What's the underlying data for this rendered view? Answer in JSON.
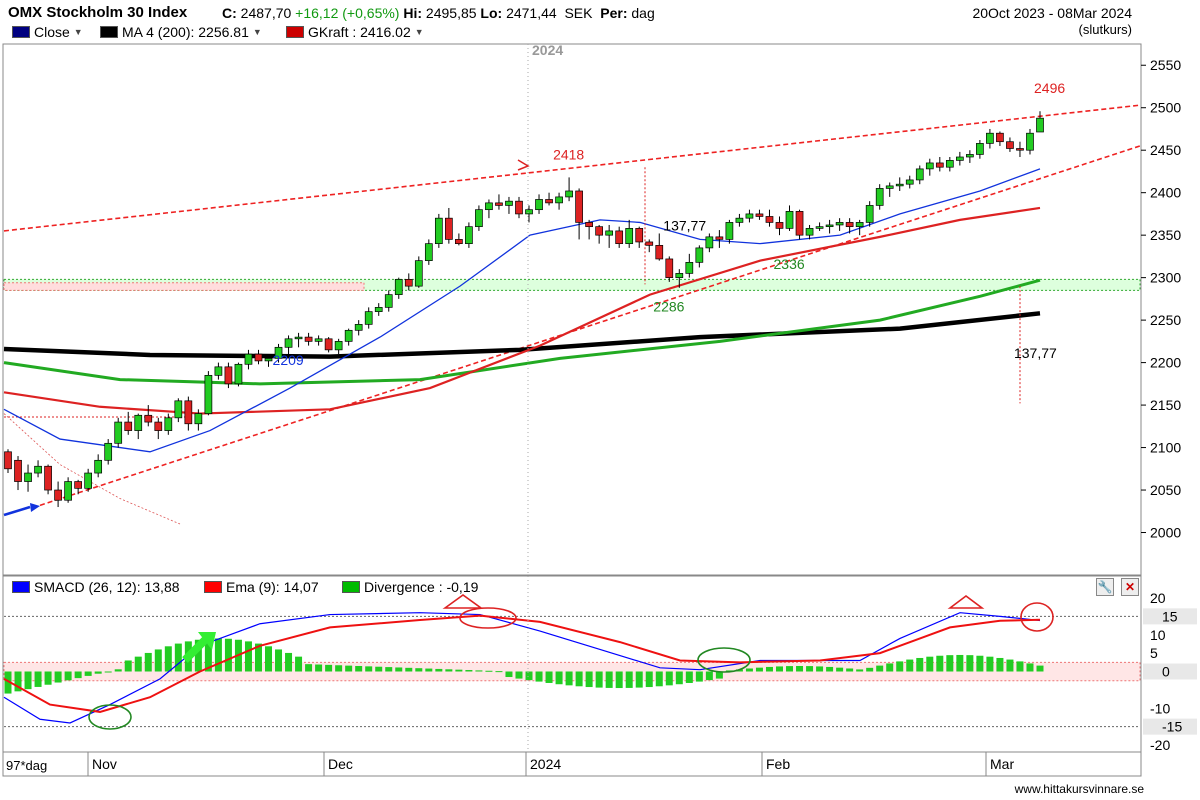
{
  "header": {
    "index_name": "OMX Stockholm 30 Index",
    "close_label": "C:",
    "close_value": "2487,70",
    "change": "+16,12 (+0,65%)",
    "hi_label": "Hi:",
    "hi_value": "2495,85",
    "lo_label": "Lo:",
    "lo_value": "2471,44",
    "currency": "SEK",
    "period_label": "Per:",
    "period_value": "dag",
    "date_range": "20Oct 2023 - 08Mar 2024",
    "close_type": "(slutkurs)"
  },
  "legend_main": [
    {
      "label": "Close",
      "color": "#000080"
    },
    {
      "label": "MA 4 (200): 2256.81",
      "color": "#000000"
    },
    {
      "label": "GKraft : 2416.02",
      "color": "#cc0000"
    }
  ],
  "legend_macd": [
    {
      "label": "SMACD (26, 12): 13,88",
      "color": "#0000ff"
    },
    {
      "label": "Ema (9): 14,07",
      "color": "#ff0000"
    },
    {
      "label": "Divergence : -0,19",
      "color": "#00bb00"
    }
  ],
  "colors": {
    "up": "#22cc22",
    "down": "#dd2222",
    "ma200": "#000000",
    "green_ma": "#22aa22",
    "red_ma": "#dd2222",
    "blue_ma": "#1133dd",
    "trend": "#ee2222"
  },
  "watermark": "www.hittakursvinnare.se",
  "period_footer": "97*dag",
  "year_label": "2024",
  "chart_data": {
    "type": "candlestick",
    "y_axis": {
      "min": 1950,
      "max": 2575,
      "ticks": [
        2000,
        2050,
        2100,
        2150,
        2200,
        2250,
        2300,
        2350,
        2400,
        2450,
        2500,
        2550
      ]
    },
    "x_labels": [
      "Nov",
      "Dec",
      "2024",
      "Feb",
      "Mar"
    ],
    "candles": [
      [
        2095,
        2098,
        2070,
        2075
      ],
      [
        2085,
        2090,
        2050,
        2060
      ],
      [
        2060,
        2080,
        2048,
        2070
      ],
      [
        2070,
        2085,
        2065,
        2078
      ],
      [
        2078,
        2080,
        2045,
        2050
      ],
      [
        2050,
        2060,
        2030,
        2038
      ],
      [
        2038,
        2065,
        2035,
        2060
      ],
      [
        2060,
        2062,
        2045,
        2052
      ],
      [
        2052,
        2075,
        2048,
        2070
      ],
      [
        2070,
        2092,
        2065,
        2085
      ],
      [
        2085,
        2110,
        2080,
        2105
      ],
      [
        2105,
        2135,
        2100,
        2130
      ],
      [
        2130,
        2142,
        2115,
        2120
      ],
      [
        2120,
        2140,
        2110,
        2138
      ],
      [
        2138,
        2150,
        2125,
        2130
      ],
      [
        2130,
        2135,
        2110,
        2120
      ],
      [
        2120,
        2140,
        2115,
        2135
      ],
      [
        2135,
        2158,
        2130,
        2155
      ],
      [
        2155,
        2160,
        2120,
        2128
      ],
      [
        2128,
        2145,
        2120,
        2140
      ],
      [
        2140,
        2190,
        2138,
        2185
      ],
      [
        2185,
        2200,
        2180,
        2195
      ],
      [
        2195,
        2200,
        2170,
        2175
      ],
      [
        2175,
        2200,
        2172,
        2198
      ],
      [
        2198,
        2215,
        2192,
        2210
      ],
      [
        2210,
        2215,
        2198,
        2202
      ],
      [
        2202,
        2208,
        2195,
        2205
      ],
      [
        2205,
        2222,
        2200,
        2218
      ],
      [
        2218,
        2232,
        2210,
        2228
      ],
      [
        2228,
        2235,
        2218,
        2230
      ],
      [
        2230,
        2235,
        2220,
        2225
      ],
      [
        2225,
        2232,
        2220,
        2228
      ],
      [
        2228,
        2230,
        2212,
        2215
      ],
      [
        2215,
        2228,
        2210,
        2225
      ],
      [
        2225,
        2240,
        2220,
        2238
      ],
      [
        2238,
        2250,
        2232,
        2245
      ],
      [
        2245,
        2265,
        2240,
        2260
      ],
      [
        2260,
        2270,
        2255,
        2265
      ],
      [
        2265,
        2285,
        2260,
        2280
      ],
      [
        2280,
        2300,
        2275,
        2298
      ],
      [
        2298,
        2305,
        2285,
        2290
      ],
      [
        2290,
        2325,
        2288,
        2320
      ],
      [
        2320,
        2345,
        2315,
        2340
      ],
      [
        2340,
        2375,
        2335,
        2370
      ],
      [
        2370,
        2382,
        2340,
        2345
      ],
      [
        2345,
        2352,
        2338,
        2340
      ],
      [
        2340,
        2365,
        2335,
        2360
      ],
      [
        2360,
        2385,
        2355,
        2380
      ],
      [
        2380,
        2392,
        2370,
        2388
      ],
      [
        2388,
        2398,
        2380,
        2385
      ],
      [
        2385,
        2395,
        2375,
        2390
      ],
      [
        2390,
        2395,
        2370,
        2375
      ],
      [
        2375,
        2385,
        2365,
        2380
      ],
      [
        2380,
        2398,
        2375,
        2392
      ],
      [
        2392,
        2400,
        2385,
        2388
      ],
      [
        2388,
        2400,
        2380,
        2395
      ],
      [
        2395,
        2418,
        2390,
        2402
      ],
      [
        2402,
        2405,
        2345,
        2365
      ],
      [
        2365,
        2368,
        2345,
        2360
      ],
      [
        2360,
        2362,
        2340,
        2350
      ],
      [
        2350,
        2362,
        2335,
        2355
      ],
      [
        2355,
        2360,
        2335,
        2340
      ],
      [
        2340,
        2368,
        2335,
        2358
      ],
      [
        2358,
        2360,
        2335,
        2342
      ],
      [
        2342,
        2345,
        2330,
        2338
      ],
      [
        2338,
        2352,
        2320,
        2322
      ],
      [
        2322,
        2325,
        2295,
        2300
      ],
      [
        2300,
        2310,
        2288,
        2305
      ],
      [
        2305,
        2328,
        2300,
        2318
      ],
      [
        2318,
        2338,
        2312,
        2335
      ],
      [
        2335,
        2352,
        2330,
        2348
      ],
      [
        2348,
        2356,
        2335,
        2345
      ],
      [
        2345,
        2368,
        2340,
        2365
      ],
      [
        2365,
        2375,
        2360,
        2370
      ],
      [
        2370,
        2380,
        2365,
        2375
      ],
      [
        2375,
        2380,
        2368,
        2372
      ],
      [
        2372,
        2380,
        2360,
        2365
      ],
      [
        2365,
        2372,
        2350,
        2358
      ],
      [
        2358,
        2385,
        2355,
        2378
      ],
      [
        2378,
        2380,
        2345,
        2350
      ],
      [
        2350,
        2362,
        2345,
        2358
      ],
      [
        2358,
        2365,
        2355,
        2360
      ],
      [
        2360,
        2368,
        2352,
        2362
      ],
      [
        2362,
        2370,
        2355,
        2365
      ],
      [
        2365,
        2370,
        2352,
        2360
      ],
      [
        2360,
        2368,
        2350,
        2365
      ],
      [
        2365,
        2390,
        2360,
        2385
      ],
      [
        2385,
        2410,
        2380,
        2405
      ],
      [
        2405,
        2412,
        2395,
        2408
      ],
      [
        2408,
        2418,
        2402,
        2410
      ],
      [
        2410,
        2420,
        2405,
        2415
      ],
      [
        2415,
        2432,
        2410,
        2428
      ],
      [
        2428,
        2440,
        2420,
        2435
      ],
      [
        2435,
        2442,
        2425,
        2430
      ],
      [
        2430,
        2442,
        2425,
        2438
      ],
      [
        2438,
        2448,
        2432,
        2442
      ],
      [
        2442,
        2450,
        2435,
        2445
      ],
      [
        2445,
        2462,
        2440,
        2458
      ],
      [
        2458,
        2475,
        2452,
        2470
      ],
      [
        2470,
        2472,
        2455,
        2460
      ],
      [
        2460,
        2465,
        2448,
        2452
      ],
      [
        2452,
        2460,
        2442,
        2450
      ],
      [
        2450,
        2475,
        2445,
        2470
      ],
      [
        2471.44,
        2495.85,
        2471.44,
        2487.7
      ]
    ],
    "annotations": [
      {
        "text": "2418",
        "x": 56,
        "y": 2418,
        "color": "#dd2222"
      },
      {
        "text": "2496",
        "x": 104,
        "y": 2496,
        "color": "#dd2222"
      },
      {
        "text": "2209",
        "x": 28,
        "y": 2209,
        "color": "#1133dd"
      },
      {
        "text": "2286",
        "x": 66,
        "y": 2286,
        "color": "#228822"
      },
      {
        "text": "2336",
        "x": 78,
        "y": 2336,
        "color": "#228822"
      },
      {
        "text": "137,77",
        "x": 67,
        "y": 2360,
        "color": "#000000"
      },
      {
        "text": "137,77",
        "x": 102,
        "y": 2210,
        "color": "#000000"
      }
    ],
    "macd": {
      "y_axis": {
        "min": -20,
        "max": 20,
        "ticks": [
          20,
          15,
          10,
          5.0,
          0,
          -10,
          -15,
          -20
        ]
      },
      "smacd_value": 13.88,
      "ema_value": 14.07,
      "divergence_value": -0.19
    }
  }
}
